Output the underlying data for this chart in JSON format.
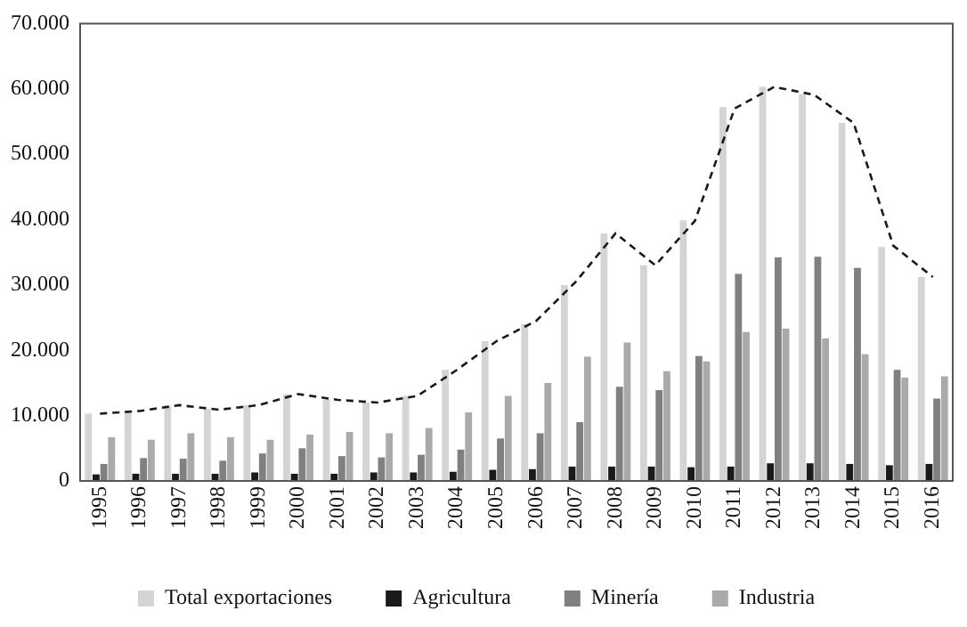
{
  "chart_data": {
    "type": "bar",
    "categories": [
      "1995",
      "1996",
      "1997",
      "1998",
      "1999",
      "2000",
      "2001",
      "2002",
      "2003",
      "2004",
      "2005",
      "2006",
      "2007",
      "2008",
      "2009",
      "2010",
      "2011",
      "2012",
      "2013",
      "2014",
      "2015",
      "2016"
    ],
    "series": [
      {
        "name": "Total exportaciones",
        "color": "#d4d4d4",
        "values": [
          10300,
          10700,
          11500,
          11000,
          11600,
          13300,
          12500,
          12000,
          13000,
          17000,
          21400,
          24000,
          30000,
          37900,
          33000,
          39900,
          57200,
          60300,
          59200,
          54800,
          35800,
          31200
        ]
      },
      {
        "name": "Agricultura",
        "color": "#1a1a1a",
        "values": [
          1000,
          1100,
          1100,
          1100,
          1300,
          1100,
          1100,
          1300,
          1300,
          1400,
          1700,
          1800,
          2200,
          2200,
          2200,
          2100,
          2200,
          2700,
          2700,
          2600,
          2400,
          2600
        ]
      },
      {
        "name": "Minería",
        "color": "#808080",
        "values": [
          2600,
          3500,
          3400,
          3100,
          4200,
          5000,
          3800,
          3600,
          4000,
          4800,
          6500,
          7300,
          9000,
          14400,
          13900,
          19100,
          31700,
          34200,
          34300,
          32600,
          17000,
          12600
        ]
      },
      {
        "name": "Industria",
        "color": "#aaaaaa",
        "values": [
          6700,
          6300,
          7300,
          6700,
          6300,
          7100,
          7500,
          7300,
          8100,
          10500,
          13000,
          15000,
          19000,
          21200,
          16800,
          18300,
          22800,
          23300,
          21800,
          19400,
          15800,
          16000
        ]
      },
      {
        "type": "line",
        "color": "#1a1a1a",
        "line_style": "dashed",
        "marker": "none",
        "values": [
          10300,
          10700,
          11600,
          10900,
          11600,
          13300,
          12400,
          12000,
          13000,
          17000,
          21400,
          24500,
          30500,
          37900,
          33000,
          39800,
          57000,
          60300,
          59100,
          54800,
          36000,
          31200
        ]
      }
    ],
    "ylim": [
      0,
      70000
    ],
    "yticks": [
      {
        "value": 0,
        "label": "0"
      },
      {
        "value": 10000,
        "label": "10.000"
      },
      {
        "value": 20000,
        "label": "20.000"
      },
      {
        "value": 30000,
        "label": "30.000"
      },
      {
        "value": 40000,
        "label": "40.000"
      },
      {
        "value": 50000,
        "label": "50.000"
      },
      {
        "value": 60000,
        "label": "60.000"
      },
      {
        "value": 70000,
        "label": "70.000"
      }
    ],
    "grid": false,
    "legend": "bottom"
  }
}
